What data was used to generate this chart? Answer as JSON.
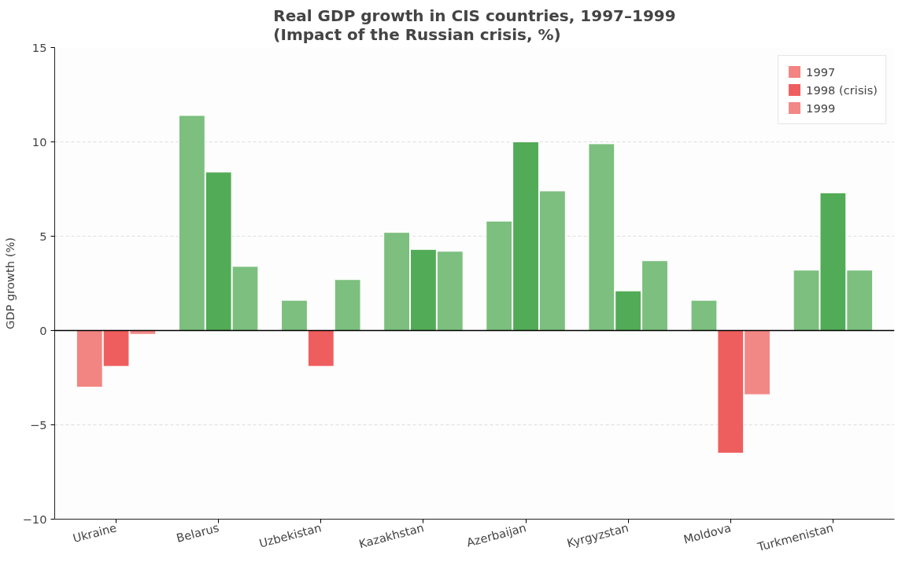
{
  "chart_data": {
    "type": "bar",
    "title": "Real GDP growth in CIS countries, 1997–1999\n(Impact of the Russian crisis, %)",
    "ylabel": "GDP growth (%)",
    "categories": [
      "Ukraine",
      "Belarus",
      "Uzbekistan",
      "Kazakhstan",
      "Azerbaijan",
      "Kyrgyzstan",
      "Moldova",
      "Turkmenistan"
    ],
    "series": [
      {
        "name": "1997",
        "values": [
          -3.0,
          11.4,
          1.6,
          5.2,
          5.8,
          9.9,
          1.6,
          3.2
        ],
        "colors": [
          "#f28482",
          "#7cbf7e",
          "#7cbf7e",
          "#7cbf7e",
          "#7cbf7e",
          "#7cbf7e",
          "#7cbf7e",
          "#7cbf7e"
        ]
      },
      {
        "name": "1998 (crisis)",
        "values": [
          -1.9,
          8.4,
          -1.9,
          4.3,
          10.0,
          2.1,
          -6.5,
          7.3
        ],
        "colors": [
          "#ef5e5e",
          "#52ab56",
          "#ef5e5e",
          "#52ab56",
          "#52ab56",
          "#52ab56",
          "#ef5e5e",
          "#52ab56"
        ]
      },
      {
        "name": "1999",
        "values": [
          -0.2,
          3.4,
          2.7,
          4.2,
          7.4,
          3.7,
          -3.4,
          3.2
        ],
        "colors": [
          "#f28886",
          "#7cbf7e",
          "#7cbf7e",
          "#7cbf7e",
          "#7cbf7e",
          "#7cbf7e",
          "#f28886",
          "#7cbf7e"
        ]
      }
    ],
    "ylim": [
      -10,
      15
    ],
    "yticks": [
      -10,
      -5,
      0,
      5,
      10,
      15
    ],
    "grid": "y",
    "legend": "top right",
    "ref_lines": [
      {
        "axis": "y",
        "value": 0,
        "color": "#000000"
      }
    ]
  }
}
